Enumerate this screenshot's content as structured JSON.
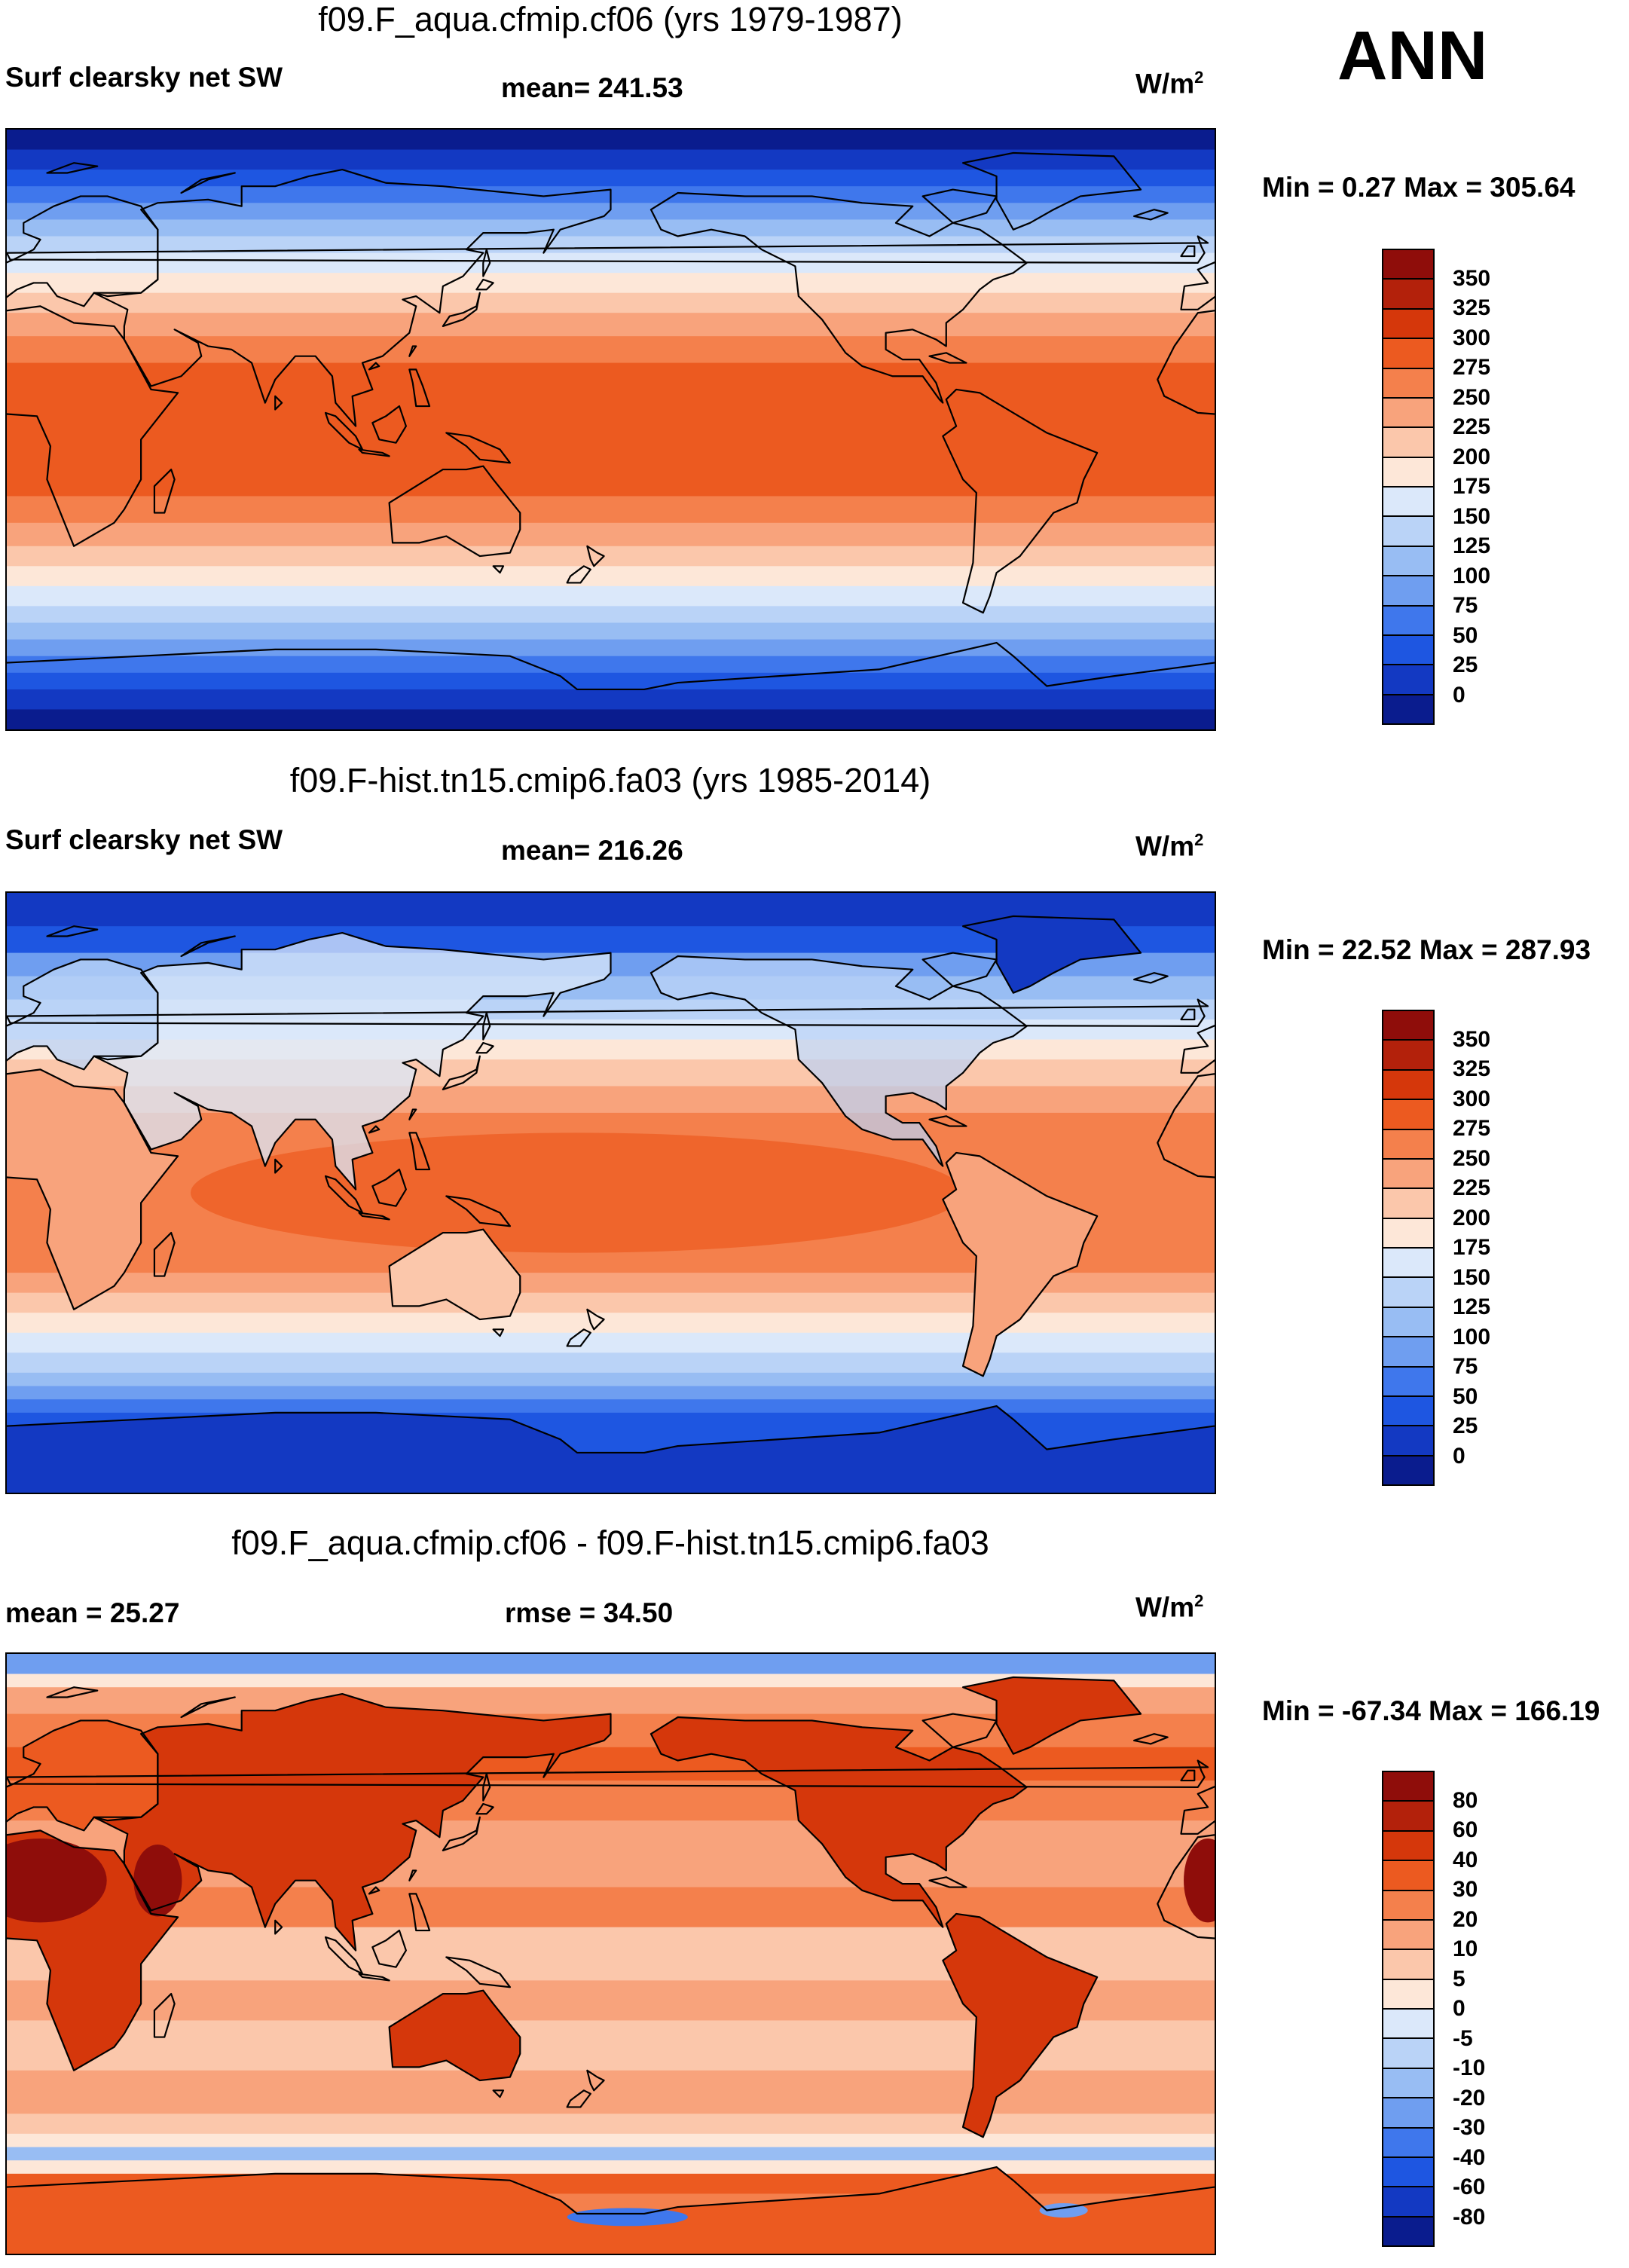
{
  "season": "ANN",
  "coast_color": "#000000",
  "panels": [
    {
      "title": "f09.F_aqua.cfmip.cf06 (yrs 1979-1987)",
      "left_label": "Surf clearsky net SW",
      "center_label": "mean= 241.53",
      "units": "W/m",
      "units_exp": "2",
      "minmax": "Min =   0.27 Max = 305.64",
      "kind": "aqua",
      "colorbar": {
        "colors": [
          "#8f0d0a",
          "#b3210b",
          "#d5370b",
          "#ec5a20",
          "#f4804c",
          "#f8a37c",
          "#fbc7ab",
          "#fde7d8",
          "#dbe8fa",
          "#bad3f7",
          "#98bdf3",
          "#6f9ef0",
          "#3f77ec",
          "#1e56e1",
          "#1339c2",
          "#0a1c8e"
        ],
        "ticks": [
          "350",
          "325",
          "300",
          "275",
          "250",
          "225",
          "200",
          "175",
          "150",
          "125",
          "100",
          "75",
          "50",
          "25",
          "0"
        ]
      }
    },
    {
      "title": "f09.F-hist.tn15.cmip6.fa03 (yrs 1985-2014)",
      "left_label": "Surf clearsky net SW",
      "center_label": "mean= 216.26",
      "units": "W/m",
      "units_exp": "2",
      "minmax": "Min =  22.52 Max = 287.93",
      "kind": "hist",
      "colorbar": {
        "colors": [
          "#8f0d0a",
          "#b3210b",
          "#d5370b",
          "#ec5a20",
          "#f4804c",
          "#f8a37c",
          "#fbc7ab",
          "#fde7d8",
          "#dbe8fa",
          "#bad3f7",
          "#98bdf3",
          "#6f9ef0",
          "#3f77ec",
          "#1e56e1",
          "#1339c2",
          "#0a1c8e"
        ],
        "ticks": [
          "350",
          "325",
          "300",
          "275",
          "250",
          "225",
          "200",
          "175",
          "150",
          "125",
          "100",
          "75",
          "50",
          "25",
          "0"
        ]
      }
    },
    {
      "title": "f09.F_aqua.cfmip.cf06 - f09.F-hist.tn15.cmip6.fa03",
      "left_label": "mean =  25.27",
      "center_label": "rmse =  34.50",
      "units": "W/m",
      "units_exp": "2",
      "minmax": "Min = -67.34 Max = 166.19",
      "kind": "diff",
      "colorbar": {
        "colors": [
          "#8f0d0a",
          "#b3210b",
          "#d5370b",
          "#ec5a20",
          "#f4804c",
          "#f8a37c",
          "#fbc7ab",
          "#fde7d8",
          "#dbe8fa",
          "#bad3f7",
          "#98bdf3",
          "#6f9ef0",
          "#3f77ec",
          "#1e56e1",
          "#1339c2",
          "#0a1c8e"
        ],
        "ticks": [
          "80",
          "60",
          "40",
          "30",
          "20",
          "10",
          "5",
          "0",
          "-5",
          "-10",
          "-20",
          "-30",
          "-40",
          "-60",
          "-80"
        ]
      }
    }
  ]
}
